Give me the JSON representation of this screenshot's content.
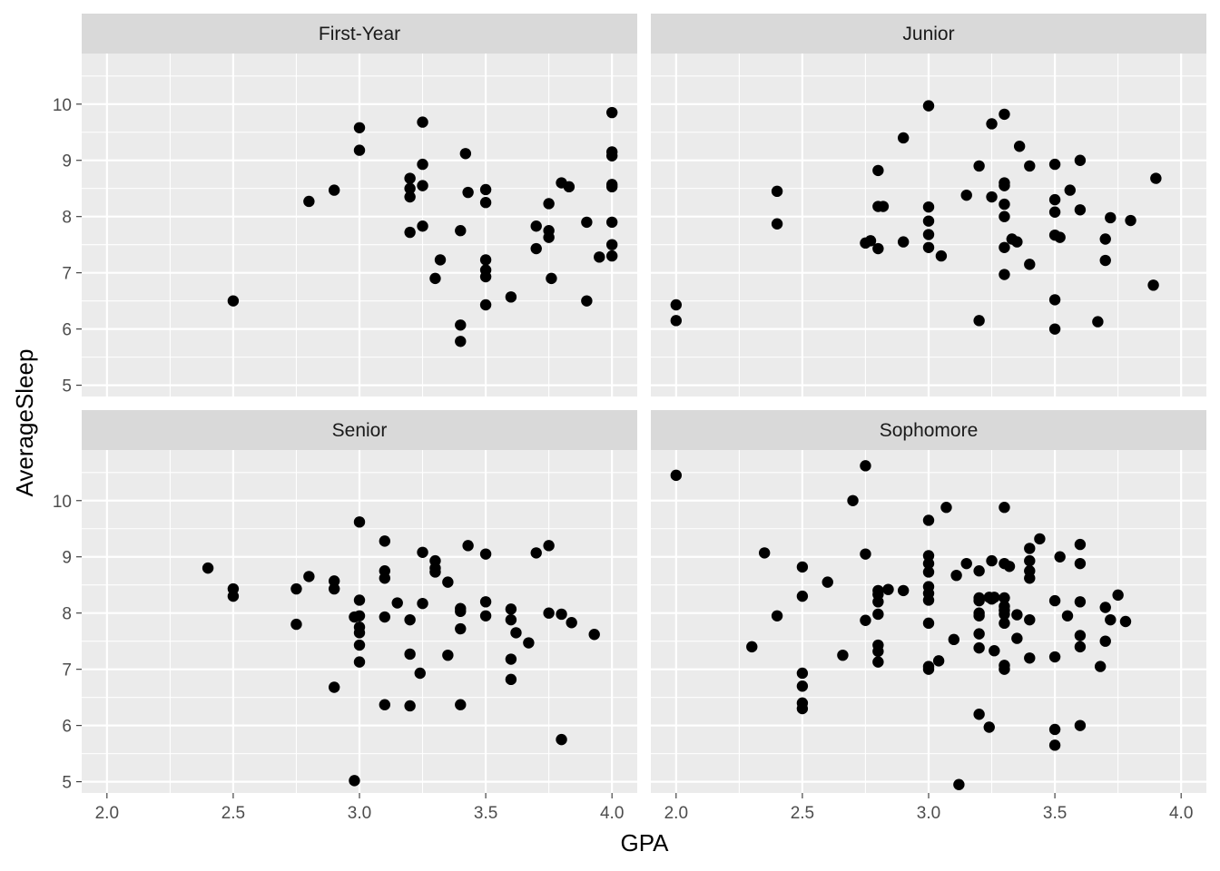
{
  "chart_data": {
    "type": "scatter",
    "xlabel": "GPA",
    "ylabel": "AverageSleep",
    "xlim": [
      1.9,
      4.1
    ],
    "ylim": [
      4.8,
      10.9
    ],
    "x_ticks": [
      2.0,
      2.5,
      3.0,
      3.5,
      4.0
    ],
    "x_tick_labels": [
      "2.0",
      "2.5",
      "3.0",
      "3.5",
      "4.0"
    ],
    "y_ticks": [
      5,
      6,
      7,
      8,
      9,
      10
    ],
    "y_tick_labels": [
      "5",
      "6",
      "7",
      "8",
      "9",
      "10"
    ],
    "facets": [
      {
        "label": "First-Year",
        "points": [
          [
            2.5,
            6.5
          ],
          [
            2.8,
            8.27
          ],
          [
            2.9,
            8.47
          ],
          [
            3.0,
            9.58
          ],
          [
            3.0,
            9.18
          ],
          [
            3.2,
            8.68
          ],
          [
            3.2,
            8.5
          ],
          [
            3.2,
            8.35
          ],
          [
            3.2,
            7.72
          ],
          [
            3.25,
            9.68
          ],
          [
            3.25,
            8.93
          ],
          [
            3.25,
            8.55
          ],
          [
            3.25,
            7.83
          ],
          [
            3.3,
            6.9
          ],
          [
            3.32,
            7.23
          ],
          [
            3.4,
            7.75
          ],
          [
            3.4,
            6.07
          ],
          [
            3.4,
            5.78
          ],
          [
            3.42,
            9.12
          ],
          [
            3.43,
            8.43
          ],
          [
            3.5,
            8.48
          ],
          [
            3.5,
            8.25
          ],
          [
            3.5,
            7.23
          ],
          [
            3.5,
            7.05
          ],
          [
            3.5,
            6.93
          ],
          [
            3.5,
            6.43
          ],
          [
            3.6,
            6.57
          ],
          [
            3.7,
            7.83
          ],
          [
            3.7,
            7.43
          ],
          [
            3.75,
            8.23
          ],
          [
            3.75,
            7.75
          ],
          [
            3.75,
            7.63
          ],
          [
            3.76,
            6.9
          ],
          [
            3.8,
            8.6
          ],
          [
            3.83,
            8.53
          ],
          [
            3.9,
            7.9
          ],
          [
            3.9,
            6.5
          ],
          [
            3.95,
            7.28
          ],
          [
            4.0,
            9.85
          ],
          [
            4.0,
            9.15
          ],
          [
            4.0,
            9.08
          ],
          [
            4.0,
            8.57
          ],
          [
            4.0,
            8.53
          ],
          [
            4.0,
            7.9
          ],
          [
            4.0,
            7.5
          ],
          [
            4.0,
            7.3
          ]
        ]
      },
      {
        "label": "Junior",
        "points": [
          [
            2.0,
            6.43
          ],
          [
            2.0,
            6.15
          ],
          [
            2.4,
            8.45
          ],
          [
            2.4,
            7.87
          ],
          [
            2.75,
            7.53
          ],
          [
            2.77,
            7.57
          ],
          [
            2.8,
            8.82
          ],
          [
            2.8,
            8.18
          ],
          [
            2.8,
            7.43
          ],
          [
            2.82,
            8.18
          ],
          [
            2.9,
            9.4
          ],
          [
            2.9,
            7.55
          ],
          [
            3.0,
            9.97
          ],
          [
            3.0,
            8.17
          ],
          [
            3.0,
            7.92
          ],
          [
            3.0,
            7.68
          ],
          [
            3.0,
            7.45
          ],
          [
            3.05,
            7.3
          ],
          [
            3.15,
            8.38
          ],
          [
            3.2,
            8.9
          ],
          [
            3.2,
            6.15
          ],
          [
            3.25,
            9.65
          ],
          [
            3.25,
            8.35
          ],
          [
            3.3,
            9.82
          ],
          [
            3.3,
            8.6
          ],
          [
            3.3,
            8.55
          ],
          [
            3.3,
            8.22
          ],
          [
            3.3,
            8.0
          ],
          [
            3.3,
            7.45
          ],
          [
            3.3,
            6.97
          ],
          [
            3.33,
            7.6
          ],
          [
            3.35,
            7.55
          ],
          [
            3.36,
            9.25
          ],
          [
            3.4,
            8.9
          ],
          [
            3.4,
            7.15
          ],
          [
            3.5,
            8.93
          ],
          [
            3.5,
            8.3
          ],
          [
            3.5,
            8.08
          ],
          [
            3.5,
            7.67
          ],
          [
            3.5,
            6.52
          ],
          [
            3.5,
            6.0
          ],
          [
            3.52,
            7.63
          ],
          [
            3.56,
            8.47
          ],
          [
            3.6,
            9.0
          ],
          [
            3.6,
            8.12
          ],
          [
            3.67,
            6.13
          ],
          [
            3.7,
            7.6
          ],
          [
            3.7,
            7.22
          ],
          [
            3.72,
            7.98
          ],
          [
            3.8,
            7.93
          ],
          [
            3.89,
            6.78
          ],
          [
            3.9,
            8.68
          ]
        ]
      },
      {
        "label": "Senior",
        "points": [
          [
            2.4,
            8.8
          ],
          [
            2.5,
            8.43
          ],
          [
            2.5,
            8.3
          ],
          [
            2.75,
            8.43
          ],
          [
            2.75,
            7.8
          ],
          [
            2.8,
            8.65
          ],
          [
            2.9,
            8.57
          ],
          [
            2.9,
            8.43
          ],
          [
            2.9,
            6.68
          ],
          [
            2.98,
            5.02
          ],
          [
            2.98,
            7.93
          ],
          [
            3.0,
            9.62
          ],
          [
            3.0,
            8.23
          ],
          [
            3.0,
            7.95
          ],
          [
            3.0,
            7.75
          ],
          [
            3.0,
            7.65
          ],
          [
            3.0,
            7.43
          ],
          [
            3.0,
            7.13
          ],
          [
            3.1,
            9.28
          ],
          [
            3.1,
            8.75
          ],
          [
            3.1,
            8.62
          ],
          [
            3.1,
            7.93
          ],
          [
            3.1,
            6.37
          ],
          [
            3.15,
            8.18
          ],
          [
            3.2,
            7.88
          ],
          [
            3.2,
            7.27
          ],
          [
            3.2,
            6.35
          ],
          [
            3.24,
            6.93
          ],
          [
            3.25,
            9.08
          ],
          [
            3.25,
            8.17
          ],
          [
            3.3,
            8.93
          ],
          [
            3.3,
            8.8
          ],
          [
            3.3,
            8.73
          ],
          [
            3.35,
            8.55
          ],
          [
            3.35,
            7.25
          ],
          [
            3.4,
            8.08
          ],
          [
            3.4,
            8.03
          ],
          [
            3.4,
            7.72
          ],
          [
            3.4,
            6.37
          ],
          [
            3.43,
            9.2
          ],
          [
            3.5,
            9.05
          ],
          [
            3.5,
            8.2
          ],
          [
            3.5,
            7.95
          ],
          [
            3.6,
            8.07
          ],
          [
            3.6,
            7.88
          ],
          [
            3.6,
            7.18
          ],
          [
            3.6,
            6.82
          ],
          [
            3.62,
            7.65
          ],
          [
            3.67,
            7.47
          ],
          [
            3.7,
            9.07
          ],
          [
            3.75,
            9.2
          ],
          [
            3.75,
            8.0
          ],
          [
            3.8,
            7.98
          ],
          [
            3.8,
            5.75
          ],
          [
            3.84,
            7.83
          ],
          [
            3.93,
            7.62
          ]
        ]
      },
      {
        "label": "Sophomore",
        "points": [
          [
            2.0,
            10.45
          ],
          [
            2.3,
            7.4
          ],
          [
            2.35,
            9.07
          ],
          [
            2.4,
            7.95
          ],
          [
            2.5,
            8.82
          ],
          [
            2.5,
            8.3
          ],
          [
            2.5,
            6.93
          ],
          [
            2.5,
            6.7
          ],
          [
            2.5,
            6.4
          ],
          [
            2.5,
            6.3
          ],
          [
            2.6,
            8.55
          ],
          [
            2.66,
            7.25
          ],
          [
            2.7,
            10.0
          ],
          [
            2.75,
            10.62
          ],
          [
            2.75,
            9.05
          ],
          [
            2.75,
            7.87
          ],
          [
            2.8,
            8.4
          ],
          [
            2.8,
            8.33
          ],
          [
            2.8,
            8.2
          ],
          [
            2.8,
            7.98
          ],
          [
            2.8,
            7.43
          ],
          [
            2.8,
            7.32
          ],
          [
            2.8,
            7.13
          ],
          [
            2.84,
            8.42
          ],
          [
            2.9,
            8.4
          ],
          [
            3.0,
            9.65
          ],
          [
            3.0,
            9.02
          ],
          [
            3.0,
            8.88
          ],
          [
            3.0,
            8.73
          ],
          [
            3.0,
            8.47
          ],
          [
            3.0,
            8.35
          ],
          [
            3.0,
            8.23
          ],
          [
            3.0,
            7.82
          ],
          [
            3.0,
            7.05
          ],
          [
            3.0,
            7.0
          ],
          [
            3.04,
            7.15
          ],
          [
            3.07,
            9.88
          ],
          [
            3.1,
            7.53
          ],
          [
            3.11,
            8.67
          ],
          [
            3.12,
            4.95
          ],
          [
            3.15,
            8.88
          ],
          [
            3.2,
            8.75
          ],
          [
            3.2,
            8.27
          ],
          [
            3.2,
            8.22
          ],
          [
            3.2,
            8.0
          ],
          [
            3.2,
            7.95
          ],
          [
            3.2,
            7.63
          ],
          [
            3.2,
            7.38
          ],
          [
            3.2,
            6.2
          ],
          [
            3.24,
            8.28
          ],
          [
            3.24,
            5.97
          ],
          [
            3.25,
            8.93
          ],
          [
            3.25,
            8.25
          ],
          [
            3.26,
            8.28
          ],
          [
            3.26,
            7.33
          ],
          [
            3.3,
            9.88
          ],
          [
            3.3,
            8.88
          ],
          [
            3.3,
            8.27
          ],
          [
            3.3,
            8.12
          ],
          [
            3.3,
            8.05
          ],
          [
            3.3,
            7.98
          ],
          [
            3.3,
            7.82
          ],
          [
            3.3,
            7.07
          ],
          [
            3.3,
            7.0
          ],
          [
            3.32,
            8.83
          ],
          [
            3.35,
            7.97
          ],
          [
            3.35,
            7.55
          ],
          [
            3.4,
            9.15
          ],
          [
            3.4,
            8.93
          ],
          [
            3.4,
            8.75
          ],
          [
            3.4,
            8.62
          ],
          [
            3.4,
            7.88
          ],
          [
            3.4,
            7.2
          ],
          [
            3.44,
            9.32
          ],
          [
            3.5,
            8.22
          ],
          [
            3.5,
            7.22
          ],
          [
            3.5,
            5.93
          ],
          [
            3.5,
            5.65
          ],
          [
            3.52,
            9.0
          ],
          [
            3.55,
            7.95
          ],
          [
            3.6,
            9.22
          ],
          [
            3.6,
            8.88
          ],
          [
            3.6,
            8.2
          ],
          [
            3.6,
            7.6
          ],
          [
            3.6,
            7.4
          ],
          [
            3.6,
            6.0
          ],
          [
            3.68,
            7.05
          ],
          [
            3.7,
            8.1
          ],
          [
            3.7,
            7.5
          ],
          [
            3.72,
            7.88
          ],
          [
            3.75,
            8.32
          ],
          [
            3.78,
            7.85
          ]
        ]
      }
    ]
  }
}
